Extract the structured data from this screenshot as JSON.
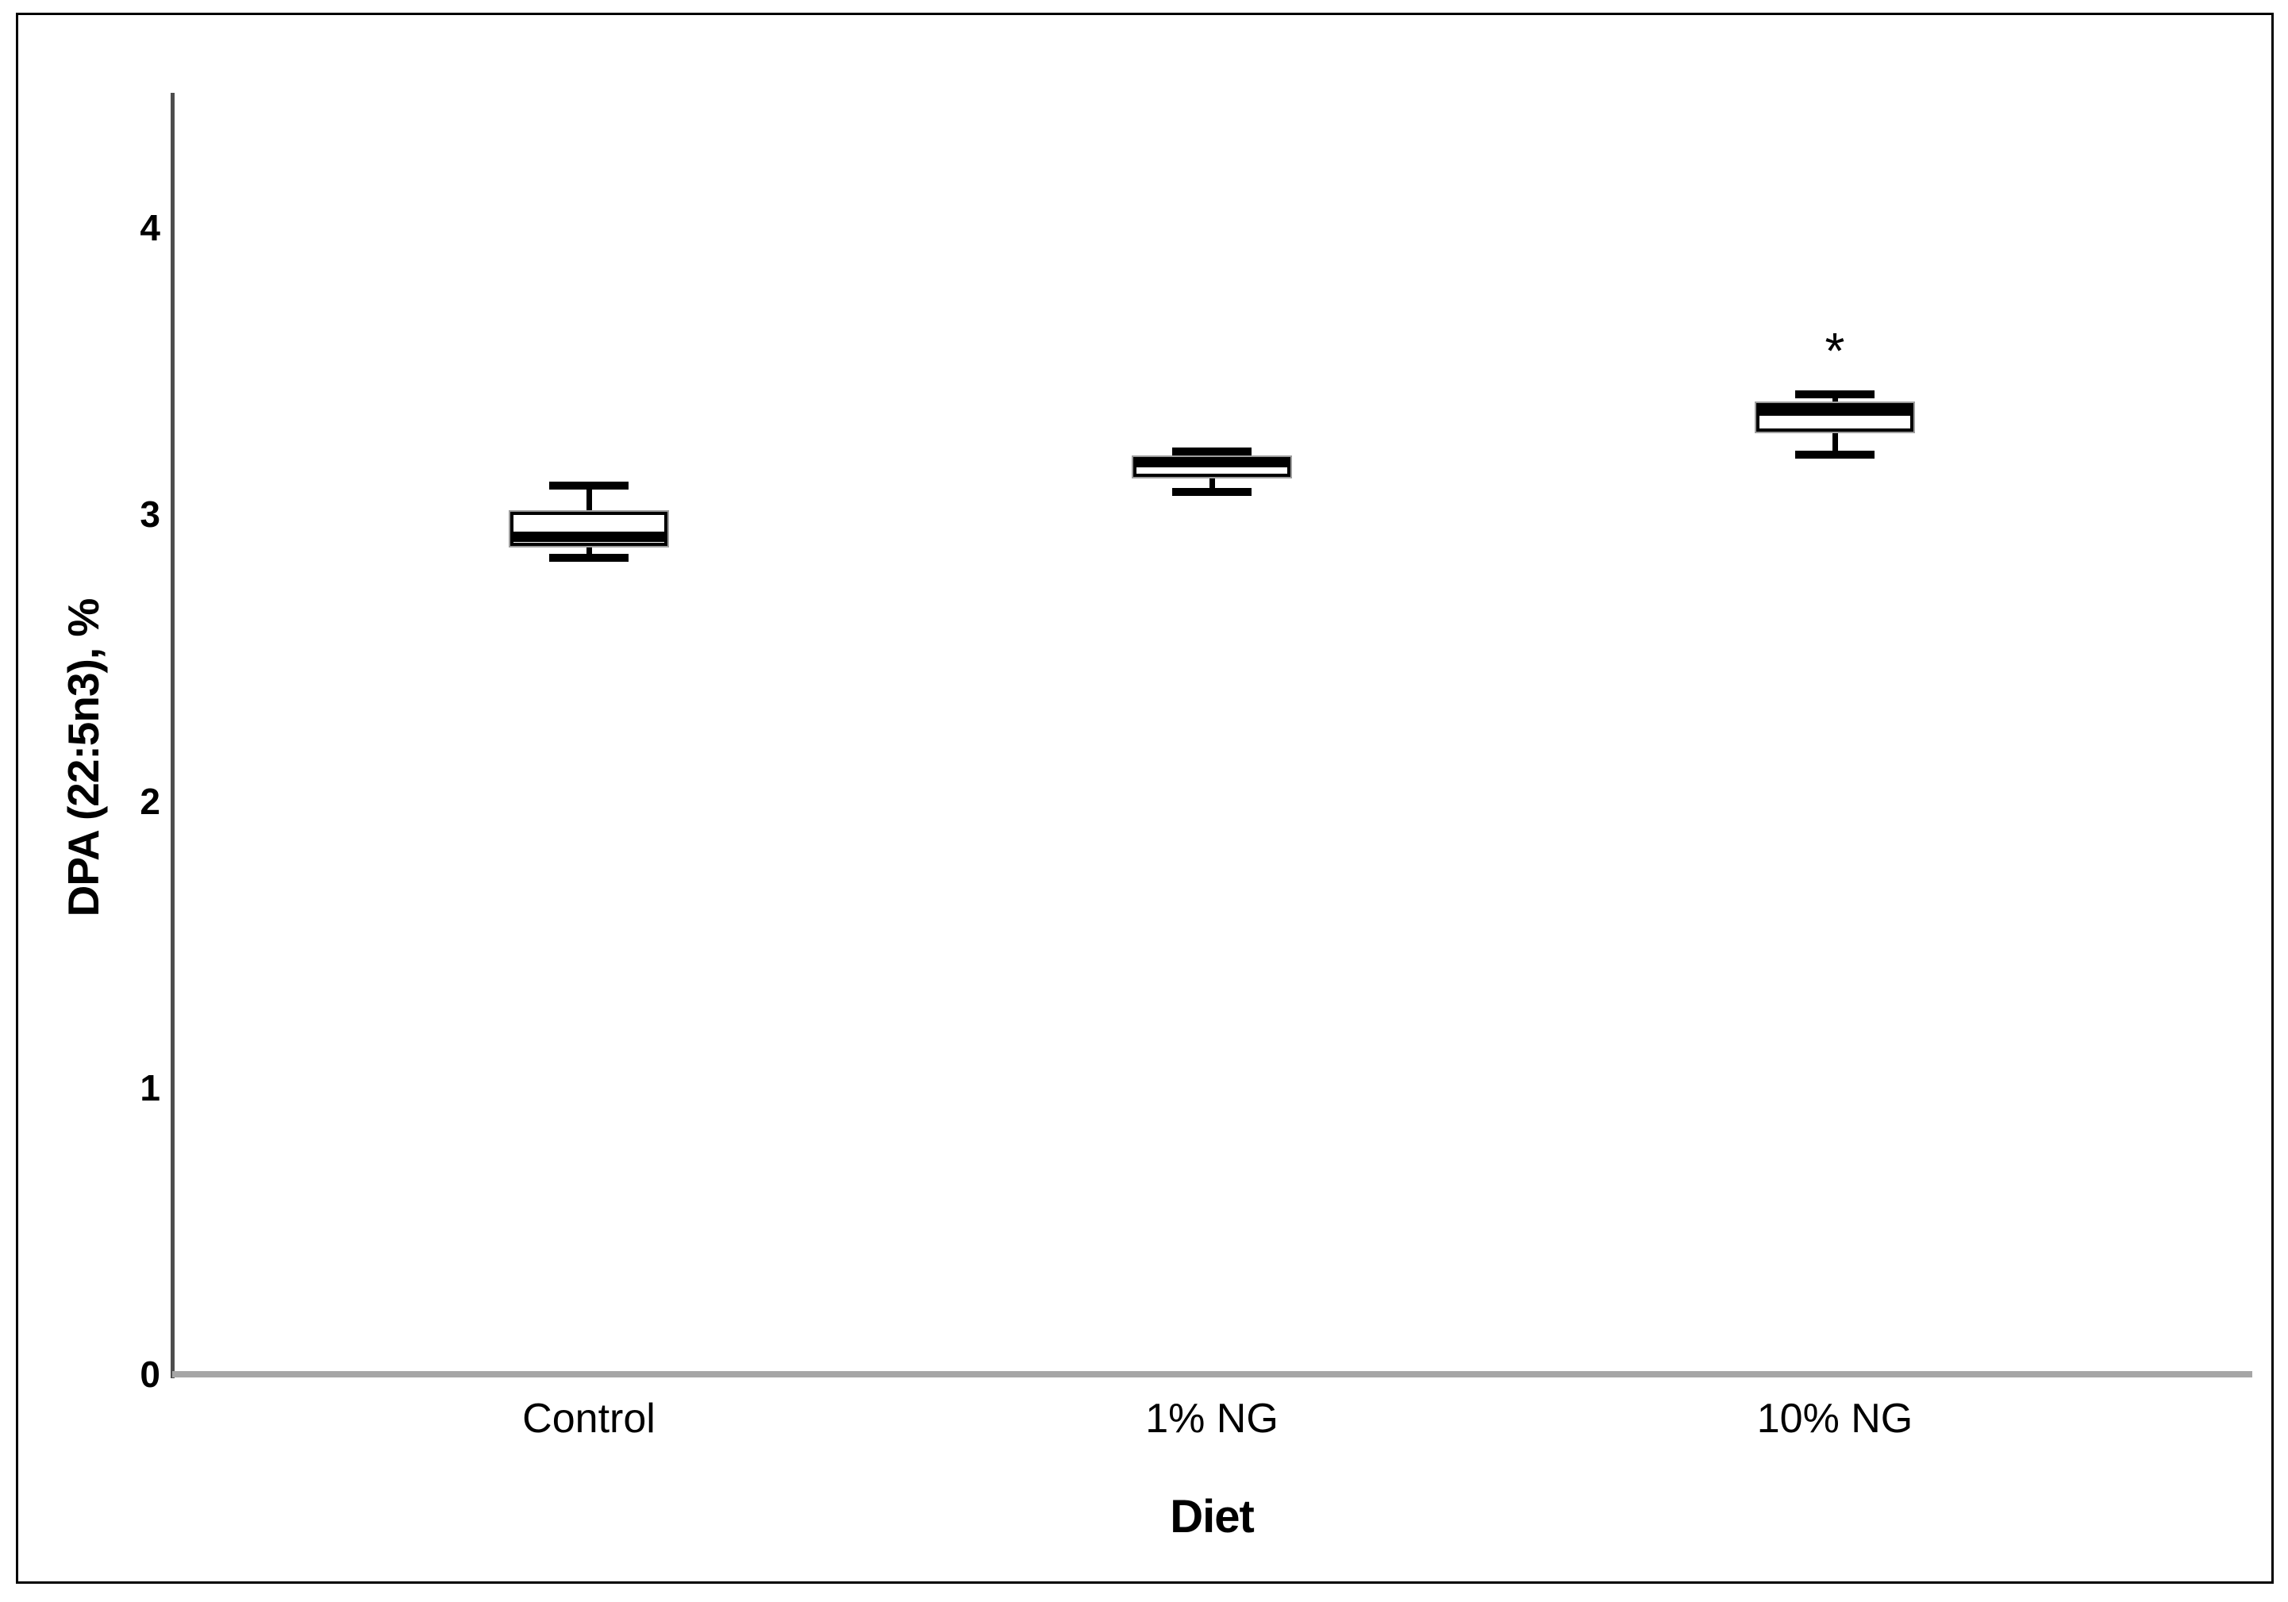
{
  "chart_data": {
    "type": "box",
    "title": "",
    "xlabel": "Diet",
    "ylabel": "DPA (22:5n3), %",
    "ylim": [
      0,
      4.5
    ],
    "yticks": [
      0,
      1,
      2,
      3,
      4
    ],
    "grid": false,
    "legend": false,
    "categories": [
      "Control",
      "1% NG",
      "10% NG"
    ],
    "series": [
      {
        "name": "Control",
        "whisker_low": 2.85,
        "q1": 2.89,
        "median": 2.92,
        "q3": 3.01,
        "whisker_high": 3.1,
        "annotation": ""
      },
      {
        "name": "1% NG",
        "whisker_low": 3.08,
        "q1": 3.13,
        "median": 3.18,
        "q3": 3.2,
        "whisker_high": 3.22,
        "annotation": ""
      },
      {
        "name": "10% NG",
        "whisker_low": 3.21,
        "q1": 3.29,
        "median": 3.36,
        "q3": 3.39,
        "whisker_high": 3.42,
        "annotation": "*"
      }
    ]
  },
  "colors": {
    "background": "#ffffff",
    "frame_border": "#000000",
    "y_axis_line": "#4d4d4d",
    "x_axis_line": "#a6a6a6",
    "box_fill": "#ffffff",
    "box_border": "#000000",
    "median": "#000000",
    "text": "#000000"
  }
}
